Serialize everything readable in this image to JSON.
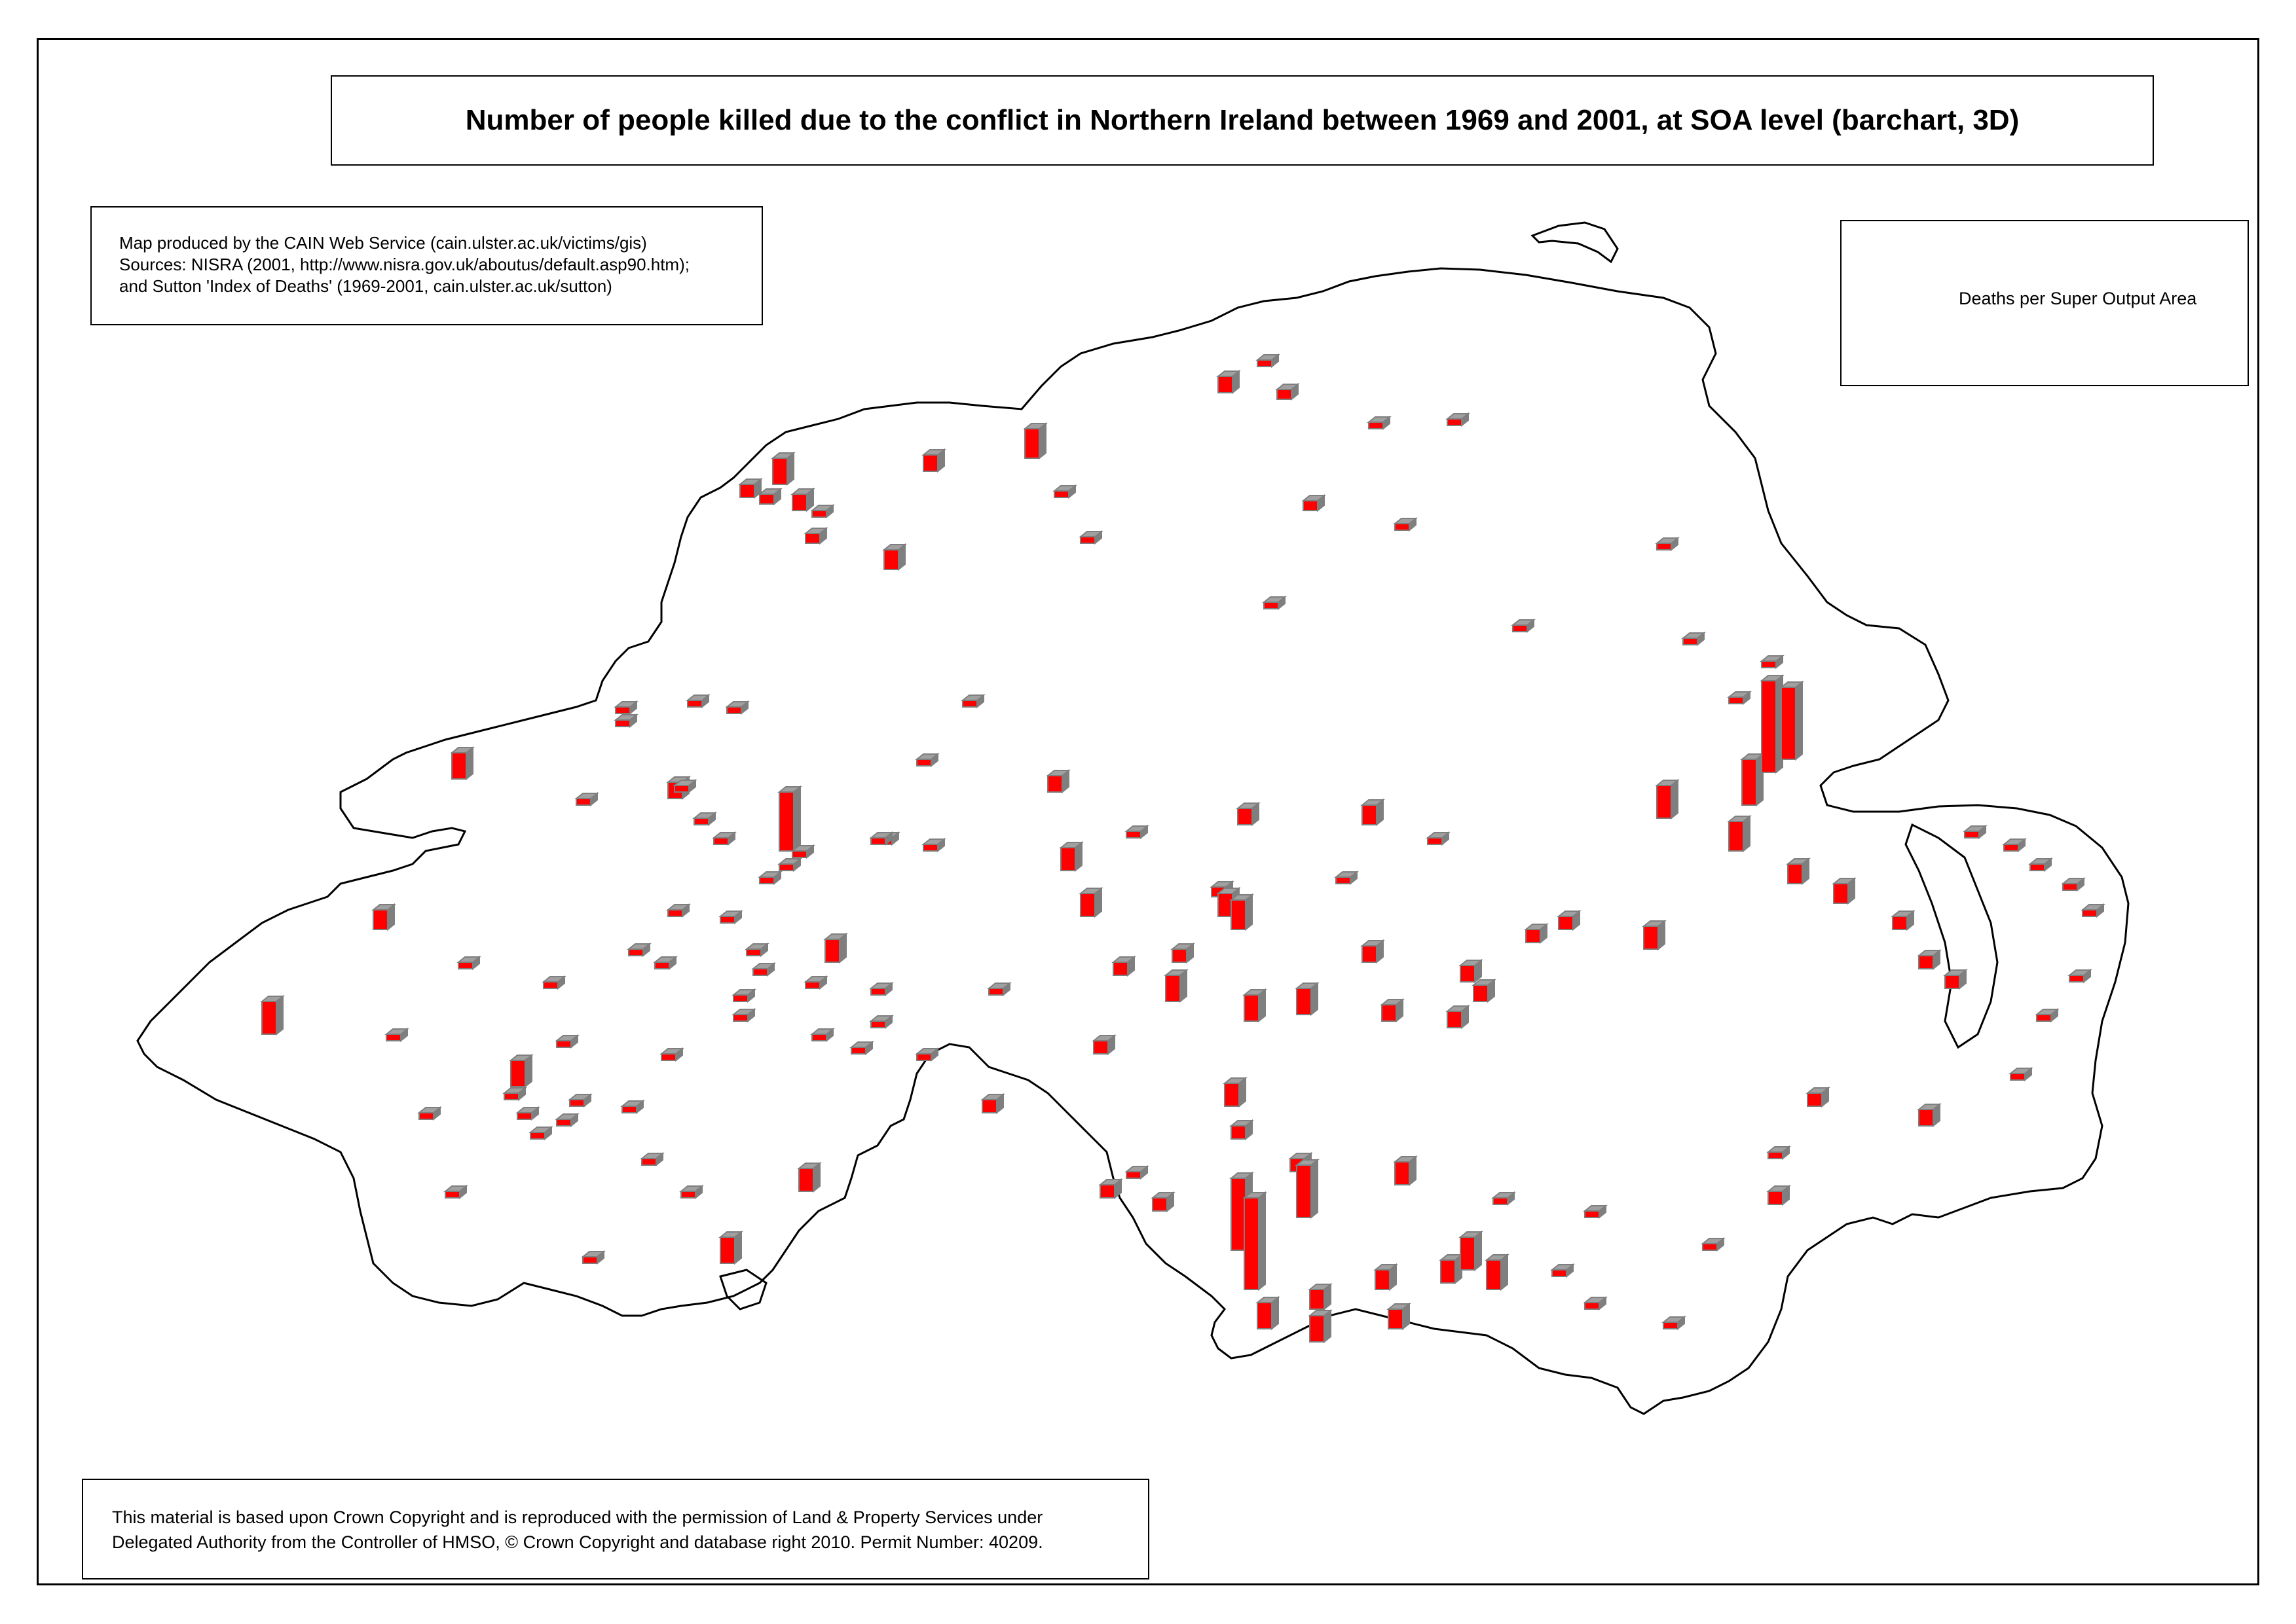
{
  "title": "Number of people killed due to the conflict in Northern Ireland between 1969 and 2001, at SOA level (barchart, 3D)",
  "credit": {
    "lines": [
      "Map produced by the CAIN Web Service (cain.ulster.ac.uk/victims/gis)",
      "Sources: NISRA (2001, http://www.nisra.gov.uk/aboutus/default.asp90.htm);",
      "and Sutton 'Index of Deaths' (1969-2001, cain.ulster.ac.uk/sutton)"
    ]
  },
  "legend": {
    "label": "Deaths per Super Output Area",
    "symbol_color": "#ff0000",
    "symbol_edge_color": "#7f7f7f"
  },
  "copyright": {
    "lines": [
      "This material is based upon Crown Copyright and is reproduced with the permission of Land & Property Services under",
      "Delegated Authority from the Controller of HMSO, © Crown Copyright and database right 2010. Permit Number: 40209."
    ]
  },
  "colors": {
    "bar_front": "#ff0000",
    "bar_side": "#7f7f7f",
    "bar_top": "#a0a0a0",
    "outline": "#000000"
  }
}
